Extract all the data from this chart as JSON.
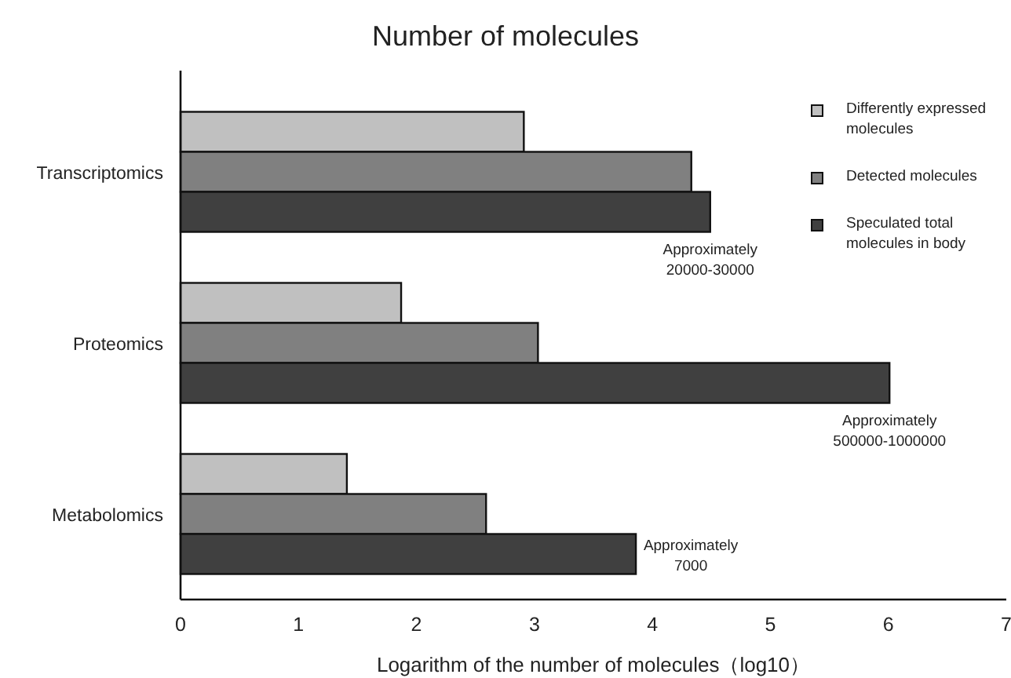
{
  "chart_data": {
    "type": "bar",
    "orientation": "horizontal",
    "title": "Number of molecules",
    "xlabel": "Logarithm of the number  of molecules（log10）",
    "categories": [
      "Transcriptomics",
      "Proteomics",
      "Metabolomics"
    ],
    "series": [
      {
        "name": "Differently expressed molecules",
        "color": "#c0c0c0",
        "values": [
          2.91,
          1.87,
          1.41
        ]
      },
      {
        "name": "Detected molecules",
        "color": "#808080",
        "values": [
          4.33,
          3.03,
          2.59
        ]
      },
      {
        "name": "Speculated total molecules in body",
        "color": "#404040",
        "values": [
          4.49,
          6.01,
          3.86
        ]
      }
    ],
    "xlim": [
      0,
      7
    ],
    "xticks": [
      0,
      1,
      2,
      3,
      4,
      5,
      6,
      7
    ],
    "legend": "top right",
    "annotations": [
      "Approximately 20000-30000",
      "Approximately 500000-1000000",
      "Approximately 7000"
    ]
  }
}
